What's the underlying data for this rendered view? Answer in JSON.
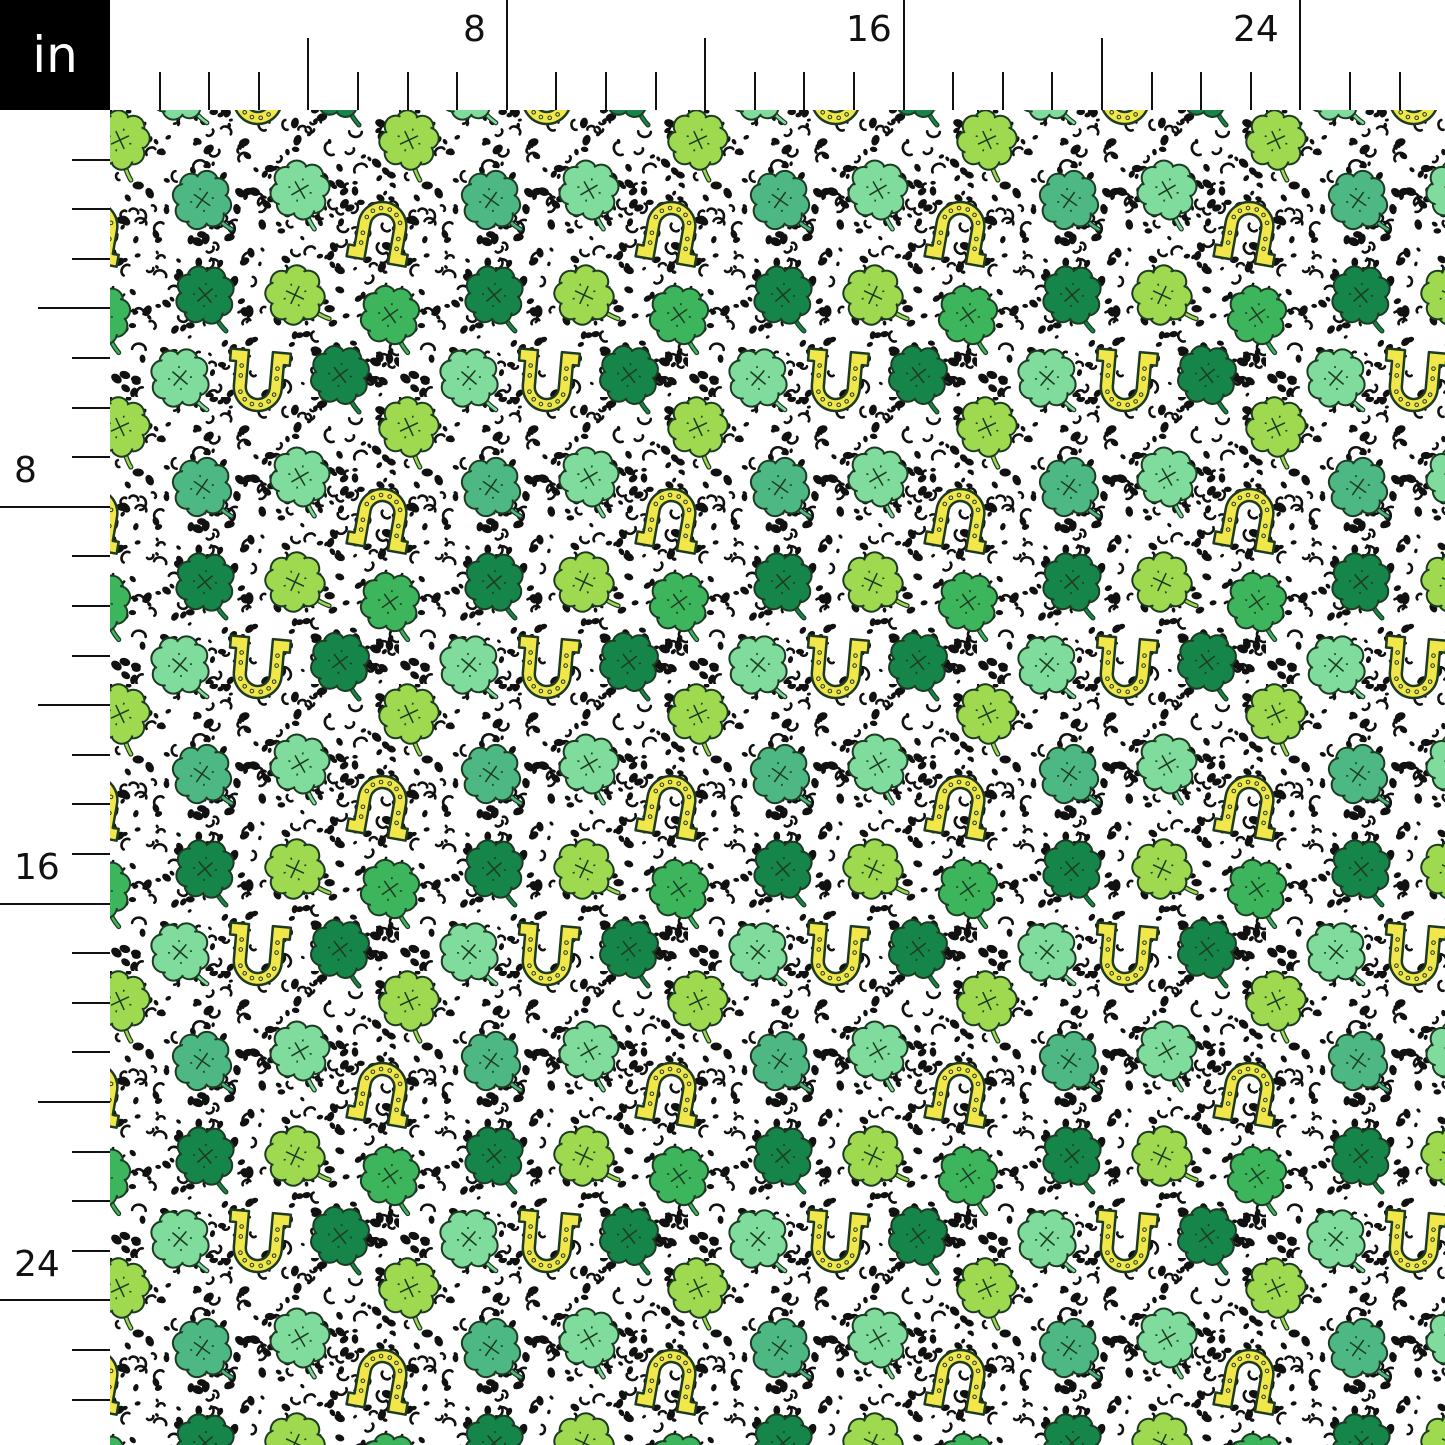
{
  "ruler": {
    "unit": "in",
    "top_labels": [
      "8",
      "16",
      "24"
    ],
    "left_labels": [
      "8",
      "16",
      "24"
    ]
  },
  "fabric": {
    "pattern": "shamrocks and horseshoes on leopard print",
    "motifs": [
      "four-leaf-clover",
      "horseshoe",
      "leopard-spots"
    ],
    "colors": {
      "background": "#ffffff",
      "spots": "#111111",
      "mint_clover": "#7fdc9c",
      "teal_clover": "#4db884",
      "dark_clover": "#16854a",
      "lime_clover": "#9ed94f",
      "green_clover": "#3cb55c",
      "horseshoe": "#f1e64a",
      "outline": "#1d3b22"
    }
  }
}
